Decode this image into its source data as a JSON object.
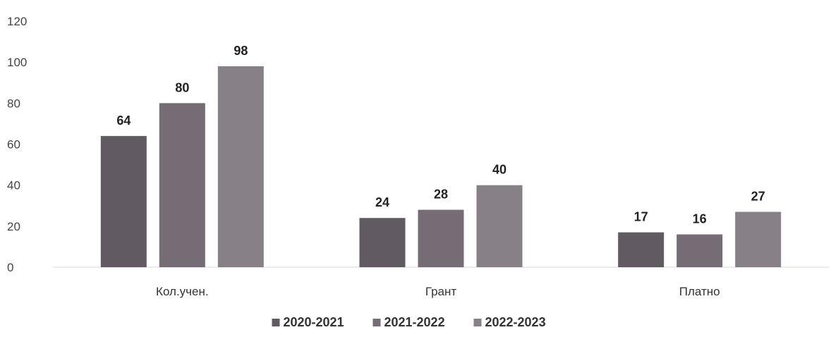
{
  "chart_data": {
    "type": "bar",
    "categories": [
      "Кол.учен.",
      "Грант",
      "Платно"
    ],
    "series": [
      {
        "name": "2020-2021",
        "values": [
          64,
          24,
          17
        ],
        "color": "#625a62"
      },
      {
        "name": "2021-2022",
        "values": [
          80,
          28,
          16
        ],
        "color": "#756c75"
      },
      {
        "name": "2022-2023",
        "values": [
          98,
          40,
          27
        ],
        "color": "#878087"
      }
    ],
    "ylim": [
      0,
      120
    ],
    "yticks": [
      0,
      20,
      40,
      60,
      80,
      100,
      120
    ],
    "grid": false,
    "legend_position": "bottom",
    "title": "",
    "xlabel": "",
    "ylabel": ""
  }
}
